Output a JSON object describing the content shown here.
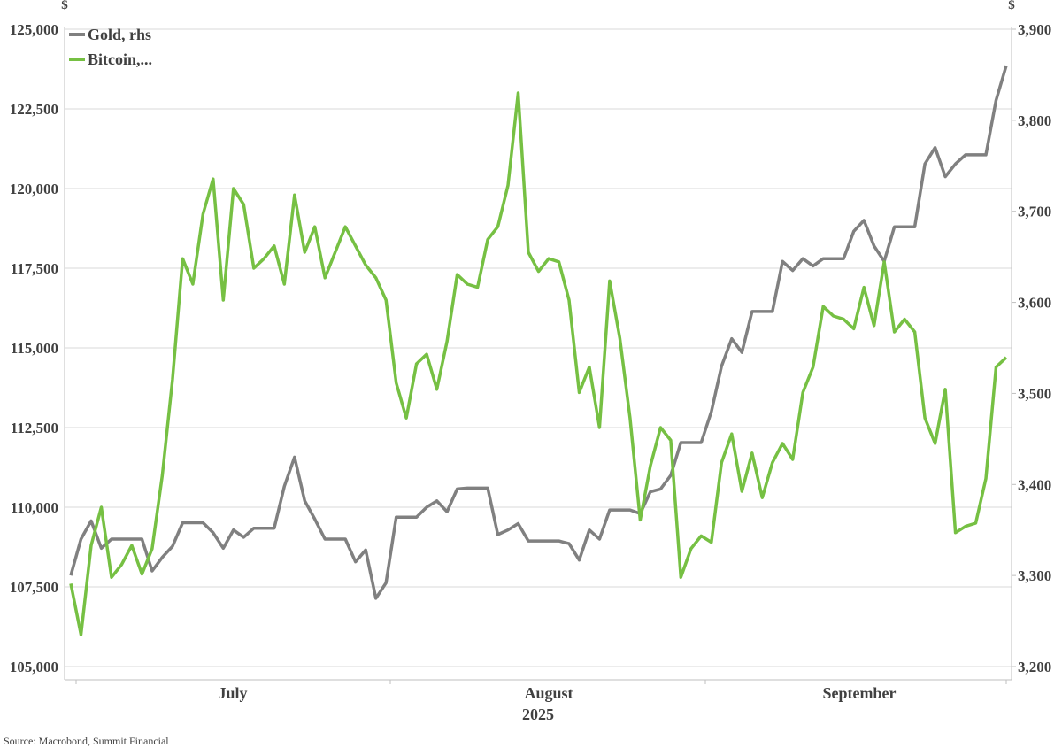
{
  "chart_data": {
    "type": "line",
    "title": "",
    "source": "Source: Macrobond, Summit Financial",
    "x_year_label": "2025",
    "x_month_labels": [
      "July",
      "August",
      "September"
    ],
    "left_axis": {
      "unit": "$",
      "ylim": [
        105000,
        125000
      ],
      "ticks": [
        "105,000",
        "107,500",
        "110,000",
        "112,500",
        "115,000",
        "117,500",
        "120,000",
        "122,500",
        "125,000"
      ],
      "tick_values": [
        105000,
        107500,
        110000,
        112500,
        115000,
        117500,
        120000,
        122500,
        125000
      ]
    },
    "right_axis": {
      "unit": "$",
      "ylim": [
        3200,
        3900
      ],
      "ticks": [
        "3,200",
        "3,300",
        "3,400",
        "3,500",
        "3,600",
        "3,700",
        "3,800",
        "3,900"
      ],
      "tick_values": [
        3200,
        3300,
        3400,
        3500,
        3600,
        3700,
        3800,
        3900
      ]
    },
    "legend_position": "top-left",
    "grid": true,
    "series": [
      {
        "name": "Gold, rhs",
        "axis": "right",
        "color": "#808080",
        "values": [
          3300,
          3340,
          3360,
          3330,
          3340,
          3340,
          3340,
          3340,
          3305,
          3320,
          3332,
          3358,
          3358,
          3358,
          3347,
          3330,
          3350,
          3342,
          3352,
          3352,
          3352,
          3398,
          3430,
          3382,
          3362,
          3340,
          3340,
          3340,
          3315,
          3328,
          3275,
          3292,
          3364,
          3364,
          3364,
          3375,
          3382,
          3370,
          3395,
          3396,
          3396,
          3396,
          3345,
          3350,
          3357,
          3338,
          3338,
          3338,
          3338,
          3335,
          3317,
          3350,
          3340,
          3372,
          3372,
          3372,
          3368,
          3392,
          3395,
          3410,
          3446,
          3446,
          3446,
          3480,
          3530,
          3560,
          3545,
          3590,
          3590,
          3590,
          3645,
          3635,
          3648,
          3640,
          3648,
          3648,
          3648,
          3678,
          3690,
          3662,
          3645,
          3683,
          3683,
          3683,
          3752,
          3770,
          3738,
          3752,
          3762,
          3762,
          3762,
          3822,
          3860
        ]
      },
      {
        "name": "Bitcoin,...",
        "axis": "left",
        "color": "#76c043",
        "values": [
          107600,
          106000,
          108800,
          110000,
          107800,
          108200,
          108800,
          107900,
          108700,
          111000,
          114000,
          117800,
          117000,
          119200,
          120300,
          116500,
          120000,
          119500,
          117500,
          117800,
          118200,
          117000,
          119800,
          118000,
          118800,
          117200,
          118000,
          118800,
          118200,
          117600,
          117200,
          116500,
          113900,
          112800,
          114500,
          114800,
          113700,
          115200,
          117300,
          117000,
          116900,
          118400,
          118800,
          120100,
          123000,
          118000,
          117400,
          117800,
          117700,
          116500,
          113600,
          114400,
          112500,
          117100,
          115300,
          112800,
          109600,
          111300,
          112500,
          112100,
          107800,
          108700,
          109100,
          108900,
          111400,
          112300,
          110500,
          111700,
          110300,
          111400,
          112000,
          111500,
          113600,
          114400,
          116300,
          116000,
          115900,
          115600,
          116900,
          115700,
          117700,
          115500,
          115900,
          115500,
          112800,
          112000,
          113700,
          109200,
          109400,
          109500,
          110900,
          114400,
          114700
        ]
      }
    ]
  }
}
